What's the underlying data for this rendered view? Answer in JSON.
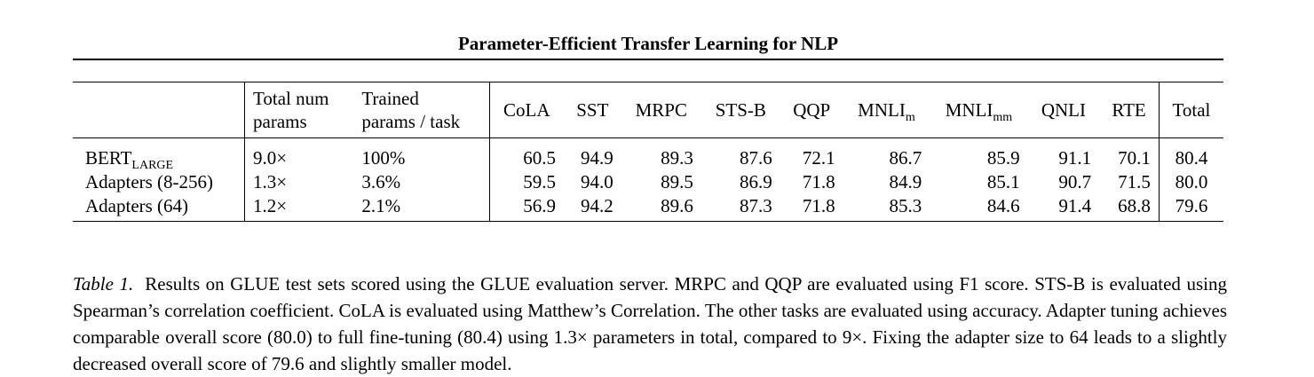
{
  "page": {
    "running_title": "Parameter-Efficient Transfer Learning for NLP"
  },
  "table": {
    "headers": {
      "model": "",
      "total_params_1": "Total num",
      "total_params_2": "params",
      "trained_params_1": "Trained",
      "trained_params_2": "params / task",
      "cola": "CoLA",
      "sst": "SST",
      "mrpc": "MRPC",
      "stsb": "STS-B",
      "qqp": "QQP",
      "mnli_m_base": "MNLI",
      "mnli_m_sub": "m",
      "mnli_mm_base": "MNLI",
      "mnli_mm_sub": "mm",
      "qnli": "QNLI",
      "rte": "RTE",
      "total": "Total"
    },
    "rows": [
      {
        "model_base": "BERT",
        "model_sub": "LARGE",
        "total_params": "9.0×",
        "trained_params": "100%",
        "cola": "60.5",
        "sst": "94.9",
        "mrpc": "89.3",
        "stsb": "87.6",
        "qqp": "72.1",
        "mnli_m": "86.7",
        "mnli_mm": "85.9",
        "qnli": "91.1",
        "rte": "70.1",
        "total": "80.4"
      },
      {
        "model_base": "Adapters (8-256)",
        "model_sub": "",
        "total_params": "1.3×",
        "trained_params": "3.6%",
        "cola": "59.5",
        "sst": "94.0",
        "mrpc": "89.5",
        "stsb": "86.9",
        "qqp": "71.8",
        "mnli_m": "84.9",
        "mnli_mm": "85.1",
        "qnli": "90.7",
        "rte": "71.5",
        "total": "80.0"
      },
      {
        "model_base": "Adapters (64)",
        "model_sub": "",
        "total_params": "1.2×",
        "trained_params": "2.1%",
        "cola": "56.9",
        "sst": "94.2",
        "mrpc": "89.6",
        "stsb": "87.3",
        "qqp": "71.8",
        "mnli_m": "85.3",
        "mnli_mm": "84.6",
        "qnli": "91.4",
        "rte": "68.8",
        "total": "79.6"
      }
    ]
  },
  "caption": {
    "label": "Table 1.",
    "text": "Results on GLUE test sets scored using the GLUE evaluation server. MRPC and QQP are evaluated using F1 score. STS-B is evaluated using Spearman’s correlation coefficient. CoLA is evaluated using Matthew’s Correlation. The other tasks are evaluated using accuracy. Adapter tuning achieves comparable overall score (80.0) to full fine-tuning (80.4) using 1.3× parameters in total, compared to 9×. Fixing the adapter size to 64 leads to a slightly decreased overall score of 79.6 and slightly smaller model."
  }
}
